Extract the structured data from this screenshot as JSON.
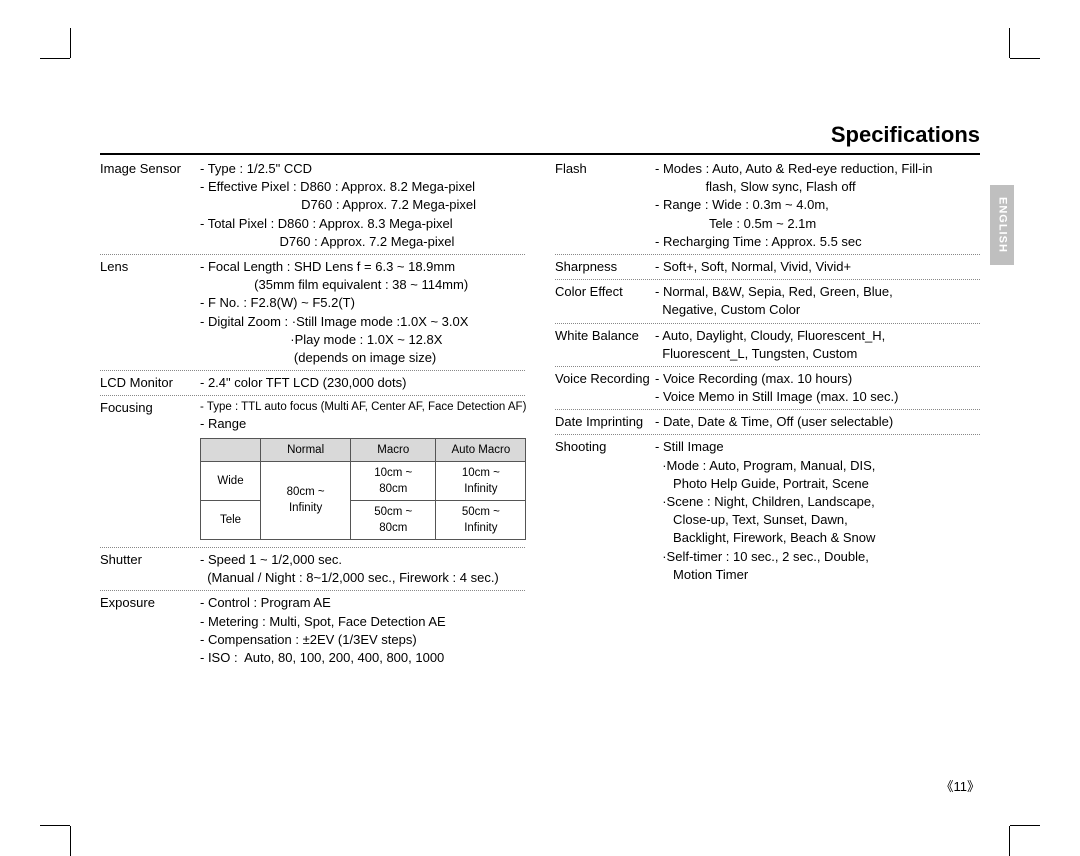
{
  "title": "Specifications",
  "side_tab": "ENGLISH",
  "page_number": "《11》",
  "left_column": [
    {
      "label": "Image Sensor",
      "lines": [
        "- Type : 1/2.5\" CCD",
        "- Effective Pixel : D860 : Approx. 8.2 Mega-pixel",
        "                            D760 : Approx. 7.2 Mega-pixel",
        "- Total Pixel : D860 : Approx. 8.3 Mega-pixel",
        "                      D760 : Approx. 7.2 Mega-pixel"
      ]
    },
    {
      "label": "Lens",
      "lines": [
        "- Focal Length : SHD Lens f = 6.3 ~ 18.9mm",
        "               (35mm film equivalent : 38 ~ 114mm)",
        "- F No. : F2.8(W) ~ F5.2(T)",
        "- Digital Zoom : ·Still Image mode :1.0X ~ 3.0X",
        "                         ·Play mode : 1.0X ~ 12.8X",
        "                          (depends on image size)"
      ]
    },
    {
      "label": "LCD Monitor",
      "lines": [
        "- 2.4\" color TFT LCD (230,000 dots)"
      ]
    },
    {
      "label": "Focusing",
      "pre_lines": [
        "- Type : TTL auto focus (Multi AF, Center AF, Face Detection AF)",
        "- Range"
      ],
      "table": {
        "headers": [
          "",
          "Normal",
          "Macro",
          "Auto Macro"
        ],
        "rows": [
          [
            "Wide",
            "",
            "10cm ~ 80cm",
            "10cm ~ Infinity"
          ],
          [
            "Tele",
            "",
            "50cm ~  80cm",
            "50cm ~ Infinity"
          ]
        ],
        "merged_normal": "80cm ~ Infinity"
      }
    },
    {
      "label": "Shutter",
      "lines": [
        "- Speed 1 ~ 1/2,000 sec.",
        "  (Manual / Night : 8~1/2,000 sec., Firework : 4 sec.)"
      ]
    },
    {
      "label": "Exposure",
      "no_border": true,
      "lines": [
        "- Control : Program AE",
        "- Metering : Multi, Spot, Face Detection AE",
        "- Compensation : ±2EV (1/3EV steps)",
        "- ISO :  Auto, 80, 100, 200, 400, 800, 1000"
      ]
    }
  ],
  "right_column": [
    {
      "label": "Flash",
      "lines": [
        "- Modes : Auto, Auto & Red-eye reduction, Fill-in",
        "              flash, Slow sync, Flash off",
        "- Range : Wide : 0.3m ~ 4.0m,",
        "               Tele : 0.5m ~ 2.1m",
        "- Recharging Time : Approx. 5.5 sec"
      ]
    },
    {
      "label": "Sharpness",
      "lines": [
        "- Soft+, Soft, Normal, Vivid, Vivid+"
      ]
    },
    {
      "label": "Color Effect",
      "lines": [
        "- Normal, B&W, Sepia, Red, Green, Blue,",
        "  Negative, Custom Color"
      ]
    },
    {
      "label": "White Balance",
      "lines": [
        "- Auto, Daylight, Cloudy, Fluorescent_H,",
        "  Fluorescent_L, Tungsten, Custom"
      ]
    },
    {
      "label": "Voice Recording",
      "lines": [
        "- Voice Recording (max. 10 hours)",
        "- Voice Memo in Still Image (max. 10 sec.)"
      ]
    },
    {
      "label": "Date Imprinting",
      "lines": [
        "- Date, Date & Time, Off (user selectable)"
      ]
    },
    {
      "label": "Shooting",
      "no_border": true,
      "lines": [
        "- Still Image",
        "  ·Mode : Auto, Program, Manual, DIS,",
        "     Photo Help Guide, Portrait, Scene",
        "  ·Scene : Night, Children, Landscape,",
        "     Close-up, Text, Sunset, Dawn,",
        "     Backlight, Firework, Beach & Snow",
        "  ·Self-timer : 10 sec., 2 sec., Double,",
        "     Motion Timer"
      ]
    }
  ]
}
